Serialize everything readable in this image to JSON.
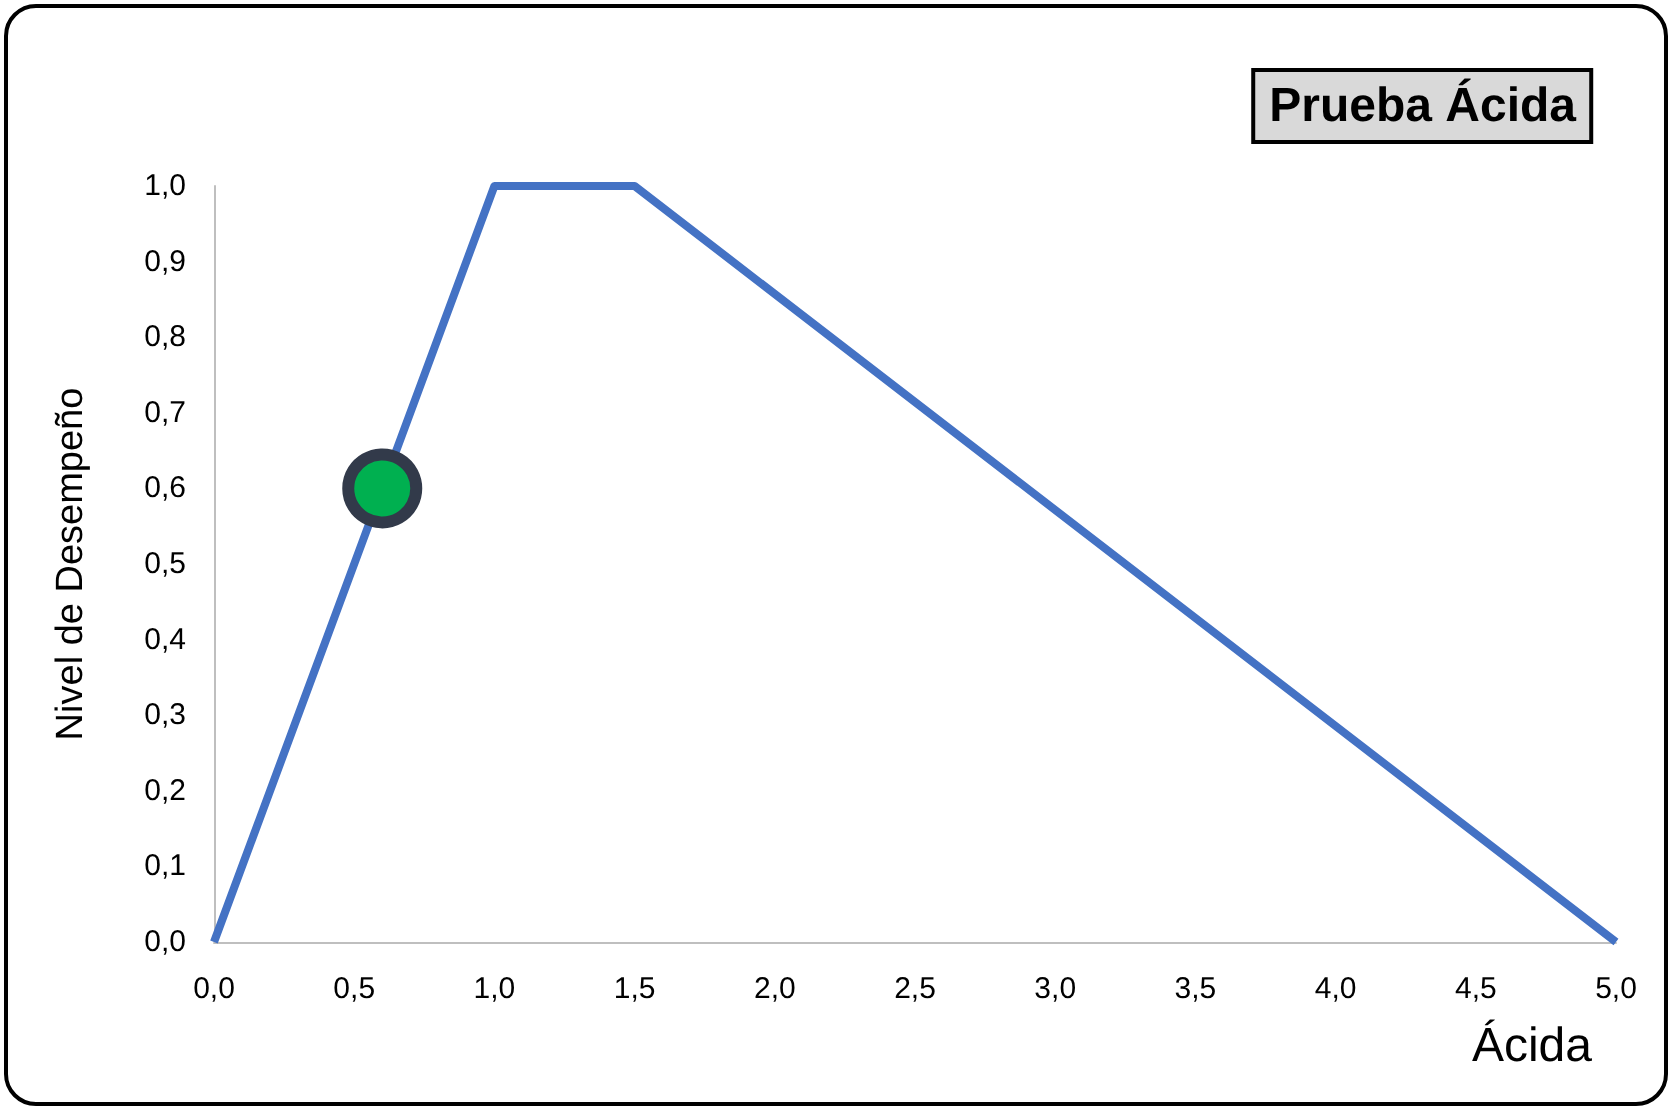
{
  "chart_data": {
    "type": "line",
    "title": "Prueba Ácida",
    "xlabel": "Ácida",
    "ylabel": "Nivel de Desempeño",
    "series": [
      {
        "type": "line",
        "color": "#4472c4",
        "x": [
          0,
          1,
          1.5,
          5
        ],
        "values": [
          0,
          1,
          1,
          0
        ],
        "marker": "none"
      },
      {
        "type": "scatter",
        "color": "#00b050",
        "x": [
          0.6
        ],
        "values": [
          0.6
        ],
        "marker": "circle"
      }
    ],
    "xlim": [
      0,
      5
    ],
    "ylim": [
      0,
      1
    ],
    "xticks": [
      {
        "value": 0,
        "label": "0,0"
      },
      {
        "value": 0.5,
        "label": "0,5"
      },
      {
        "value": 1,
        "label": "1,0"
      },
      {
        "value": 1.5,
        "label": "1,5"
      },
      {
        "value": 2,
        "label": "2,0"
      },
      {
        "value": 2.5,
        "label": "2,5"
      },
      {
        "value": 3,
        "label": "3,0"
      },
      {
        "value": 3.5,
        "label": "3,5"
      },
      {
        "value": 4,
        "label": "4,0"
      },
      {
        "value": 4.5,
        "label": "4,5"
      },
      {
        "value": 5,
        "label": "5,0"
      }
    ],
    "yticks": [
      {
        "value": 0,
        "label": "0,0"
      },
      {
        "value": 0.1,
        "label": "0,1"
      },
      {
        "value": 0.2,
        "label": "0,2"
      },
      {
        "value": 0.3,
        "label": "0,3"
      },
      {
        "value": 0.4,
        "label": "0,4"
      },
      {
        "value": 0.5,
        "label": "0,5"
      },
      {
        "value": 0.6,
        "label": "0,6"
      },
      {
        "value": 0.7,
        "label": "0,7"
      },
      {
        "value": 0.8,
        "label": "0,8"
      },
      {
        "value": 0.9,
        "label": "0,9"
      },
      {
        "value": 1,
        "label": "1,0"
      }
    ],
    "grid": false
  }
}
